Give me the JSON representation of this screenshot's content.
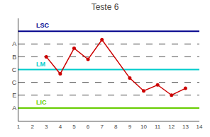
{
  "chart_data": {
    "type": "line",
    "title": "Teste 6",
    "x": [
      3,
      4,
      5,
      6,
      7,
      9,
      10,
      11,
      12,
      13
    ],
    "values": [
      7.5,
      5.5,
      8.5,
      7.2,
      9.5,
      5.0,
      3.5,
      4.2,
      3.0,
      3.8
    ],
    "color": "#CC0000",
    "marker": "circle",
    "xlim": [
      1,
      14
    ],
    "ylim": [
      0,
      12
    ],
    "xticks": [
      1,
      2,
      3,
      4,
      5,
      6,
      7,
      8,
      9,
      10,
      11,
      12,
      13,
      14
    ],
    "yticks": [
      {
        "value": 1.5,
        "label": "A"
      },
      {
        "value": 3.0,
        "label": "E"
      },
      {
        "value": 4.5,
        "label": "C"
      },
      {
        "value": 6.0,
        "label": "C"
      },
      {
        "value": 7.5,
        "label": "B"
      },
      {
        "value": 9.0,
        "label": "A"
      }
    ],
    "grid": false,
    "reference_lines": [
      {
        "name": "LSC",
        "value": 10.5,
        "color": "#00008B"
      },
      {
        "name": "LM",
        "value": 6.0,
        "color": "#00CCCC"
      },
      {
        "name": "LIC",
        "value": 1.5,
        "color": "#66CC00"
      }
    ],
    "dashed_lines": {
      "values": [
        3.0,
        4.5,
        7.5,
        9.0
      ],
      "color": "#555555",
      "line_style": "dashed"
    }
  }
}
